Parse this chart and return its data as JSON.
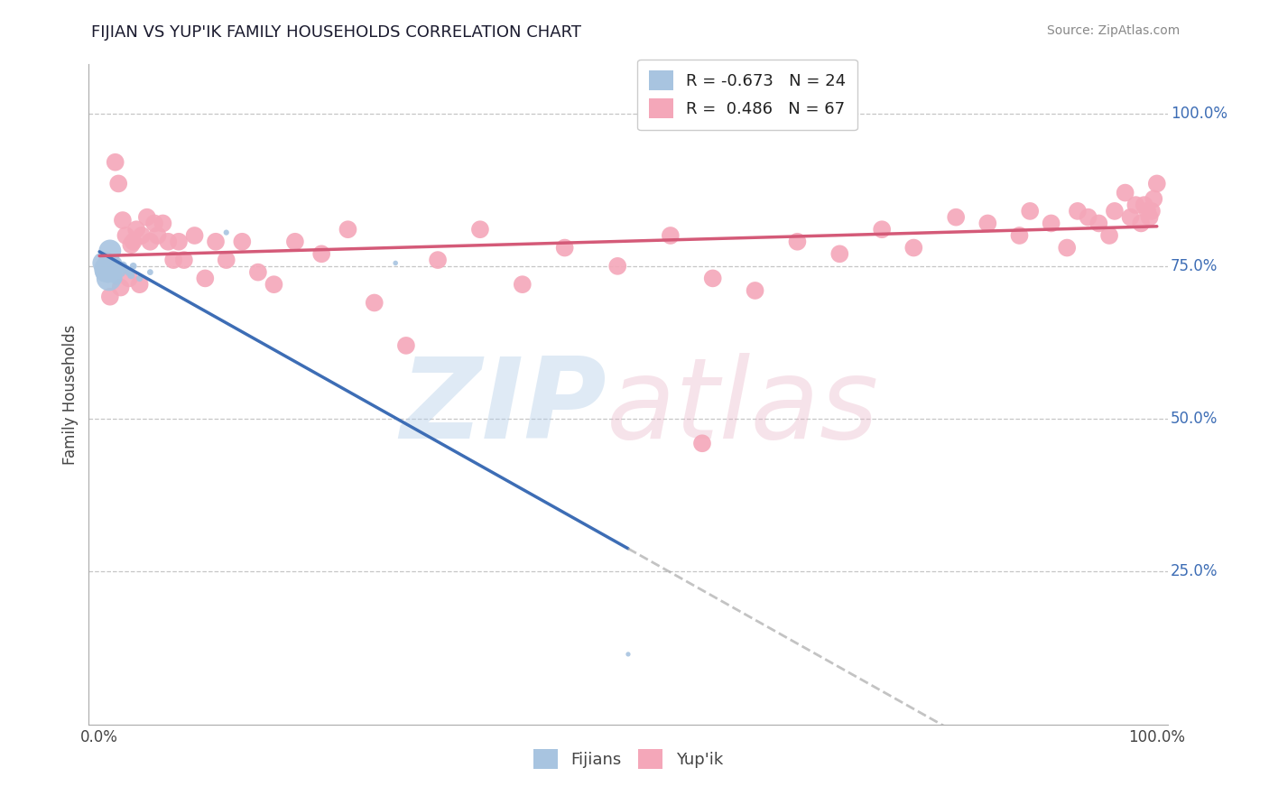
{
  "title": "FIJIAN VS YUP'IK FAMILY HOUSEHOLDS CORRELATION CHART",
  "source": "Source: ZipAtlas.com",
  "ylabel": "Family Households",
  "legend_fijian_r": "-0.673",
  "legend_fijian_n": "24",
  "legend_yupik_r": "0.486",
  "legend_yupik_n": "67",
  "fijian_color": "#a8c4e0",
  "yupik_color": "#f4a7b9",
  "fijian_line_color": "#3d6db5",
  "yupik_line_color": "#d45a78",
  "background_color": "#ffffff",
  "grid_color": "#c0c0c0",
  "ytick_labels": [
    "25.0%",
    "50.0%",
    "75.0%",
    "100.0%"
  ],
  "ytick_vals": [
    0.25,
    0.5,
    0.75,
    1.0
  ],
  "fijian_x": [
    0.004,
    0.005,
    0.006,
    0.007,
    0.008,
    0.009,
    0.01,
    0.011,
    0.012,
    0.013,
    0.015,
    0.016,
    0.018,
    0.02,
    0.022,
    0.025,
    0.028,
    0.03,
    0.032,
    0.038,
    0.048,
    0.12,
    0.28,
    0.5
  ],
  "fijian_y": [
    0.755,
    0.74,
    0.75,
    0.76,
    0.745,
    0.73,
    0.775,
    0.75,
    0.745,
    0.74,
    0.755,
    0.73,
    0.745,
    0.74,
    0.75,
    0.745,
    0.74,
    0.735,
    0.75,
    0.73,
    0.74,
    0.805,
    0.755,
    0.115
  ],
  "fijian_sizes": [
    400,
    300,
    250,
    200,
    600,
    500,
    400,
    350,
    300,
    250,
    150,
    120,
    100,
    80,
    70,
    60,
    50,
    45,
    40,
    35,
    30,
    25,
    20,
    18
  ],
  "yupik_x": [
    0.01,
    0.015,
    0.018,
    0.02,
    0.022,
    0.025,
    0.028,
    0.03,
    0.032,
    0.035,
    0.038,
    0.04,
    0.045,
    0.048,
    0.052,
    0.055,
    0.06,
    0.065,
    0.07,
    0.075,
    0.08,
    0.09,
    0.1,
    0.11,
    0.12,
    0.135,
    0.15,
    0.165,
    0.185,
    0.21,
    0.235,
    0.26,
    0.29,
    0.32,
    0.36,
    0.4,
    0.44,
    0.49,
    0.54,
    0.58,
    0.57,
    0.62,
    0.66,
    0.7,
    0.74,
    0.77,
    0.81,
    0.84,
    0.87,
    0.88,
    0.9,
    0.915,
    0.925,
    0.935,
    0.945,
    0.955,
    0.96,
    0.97,
    0.975,
    0.98,
    0.985,
    0.988,
    0.991,
    0.993,
    0.995,
    0.997,
    1.0
  ],
  "yupik_y": [
    0.7,
    0.92,
    0.885,
    0.715,
    0.825,
    0.8,
    0.73,
    0.785,
    0.79,
    0.81,
    0.72,
    0.8,
    0.83,
    0.79,
    0.82,
    0.8,
    0.82,
    0.79,
    0.76,
    0.79,
    0.76,
    0.8,
    0.73,
    0.79,
    0.76,
    0.79,
    0.74,
    0.72,
    0.79,
    0.77,
    0.81,
    0.69,
    0.62,
    0.76,
    0.81,
    0.72,
    0.78,
    0.75,
    0.8,
    0.73,
    0.46,
    0.71,
    0.79,
    0.77,
    0.81,
    0.78,
    0.83,
    0.82,
    0.8,
    0.84,
    0.82,
    0.78,
    0.84,
    0.83,
    0.82,
    0.8,
    0.84,
    0.87,
    0.83,
    0.85,
    0.82,
    0.85,
    0.84,
    0.83,
    0.84,
    0.86,
    0.885
  ]
}
